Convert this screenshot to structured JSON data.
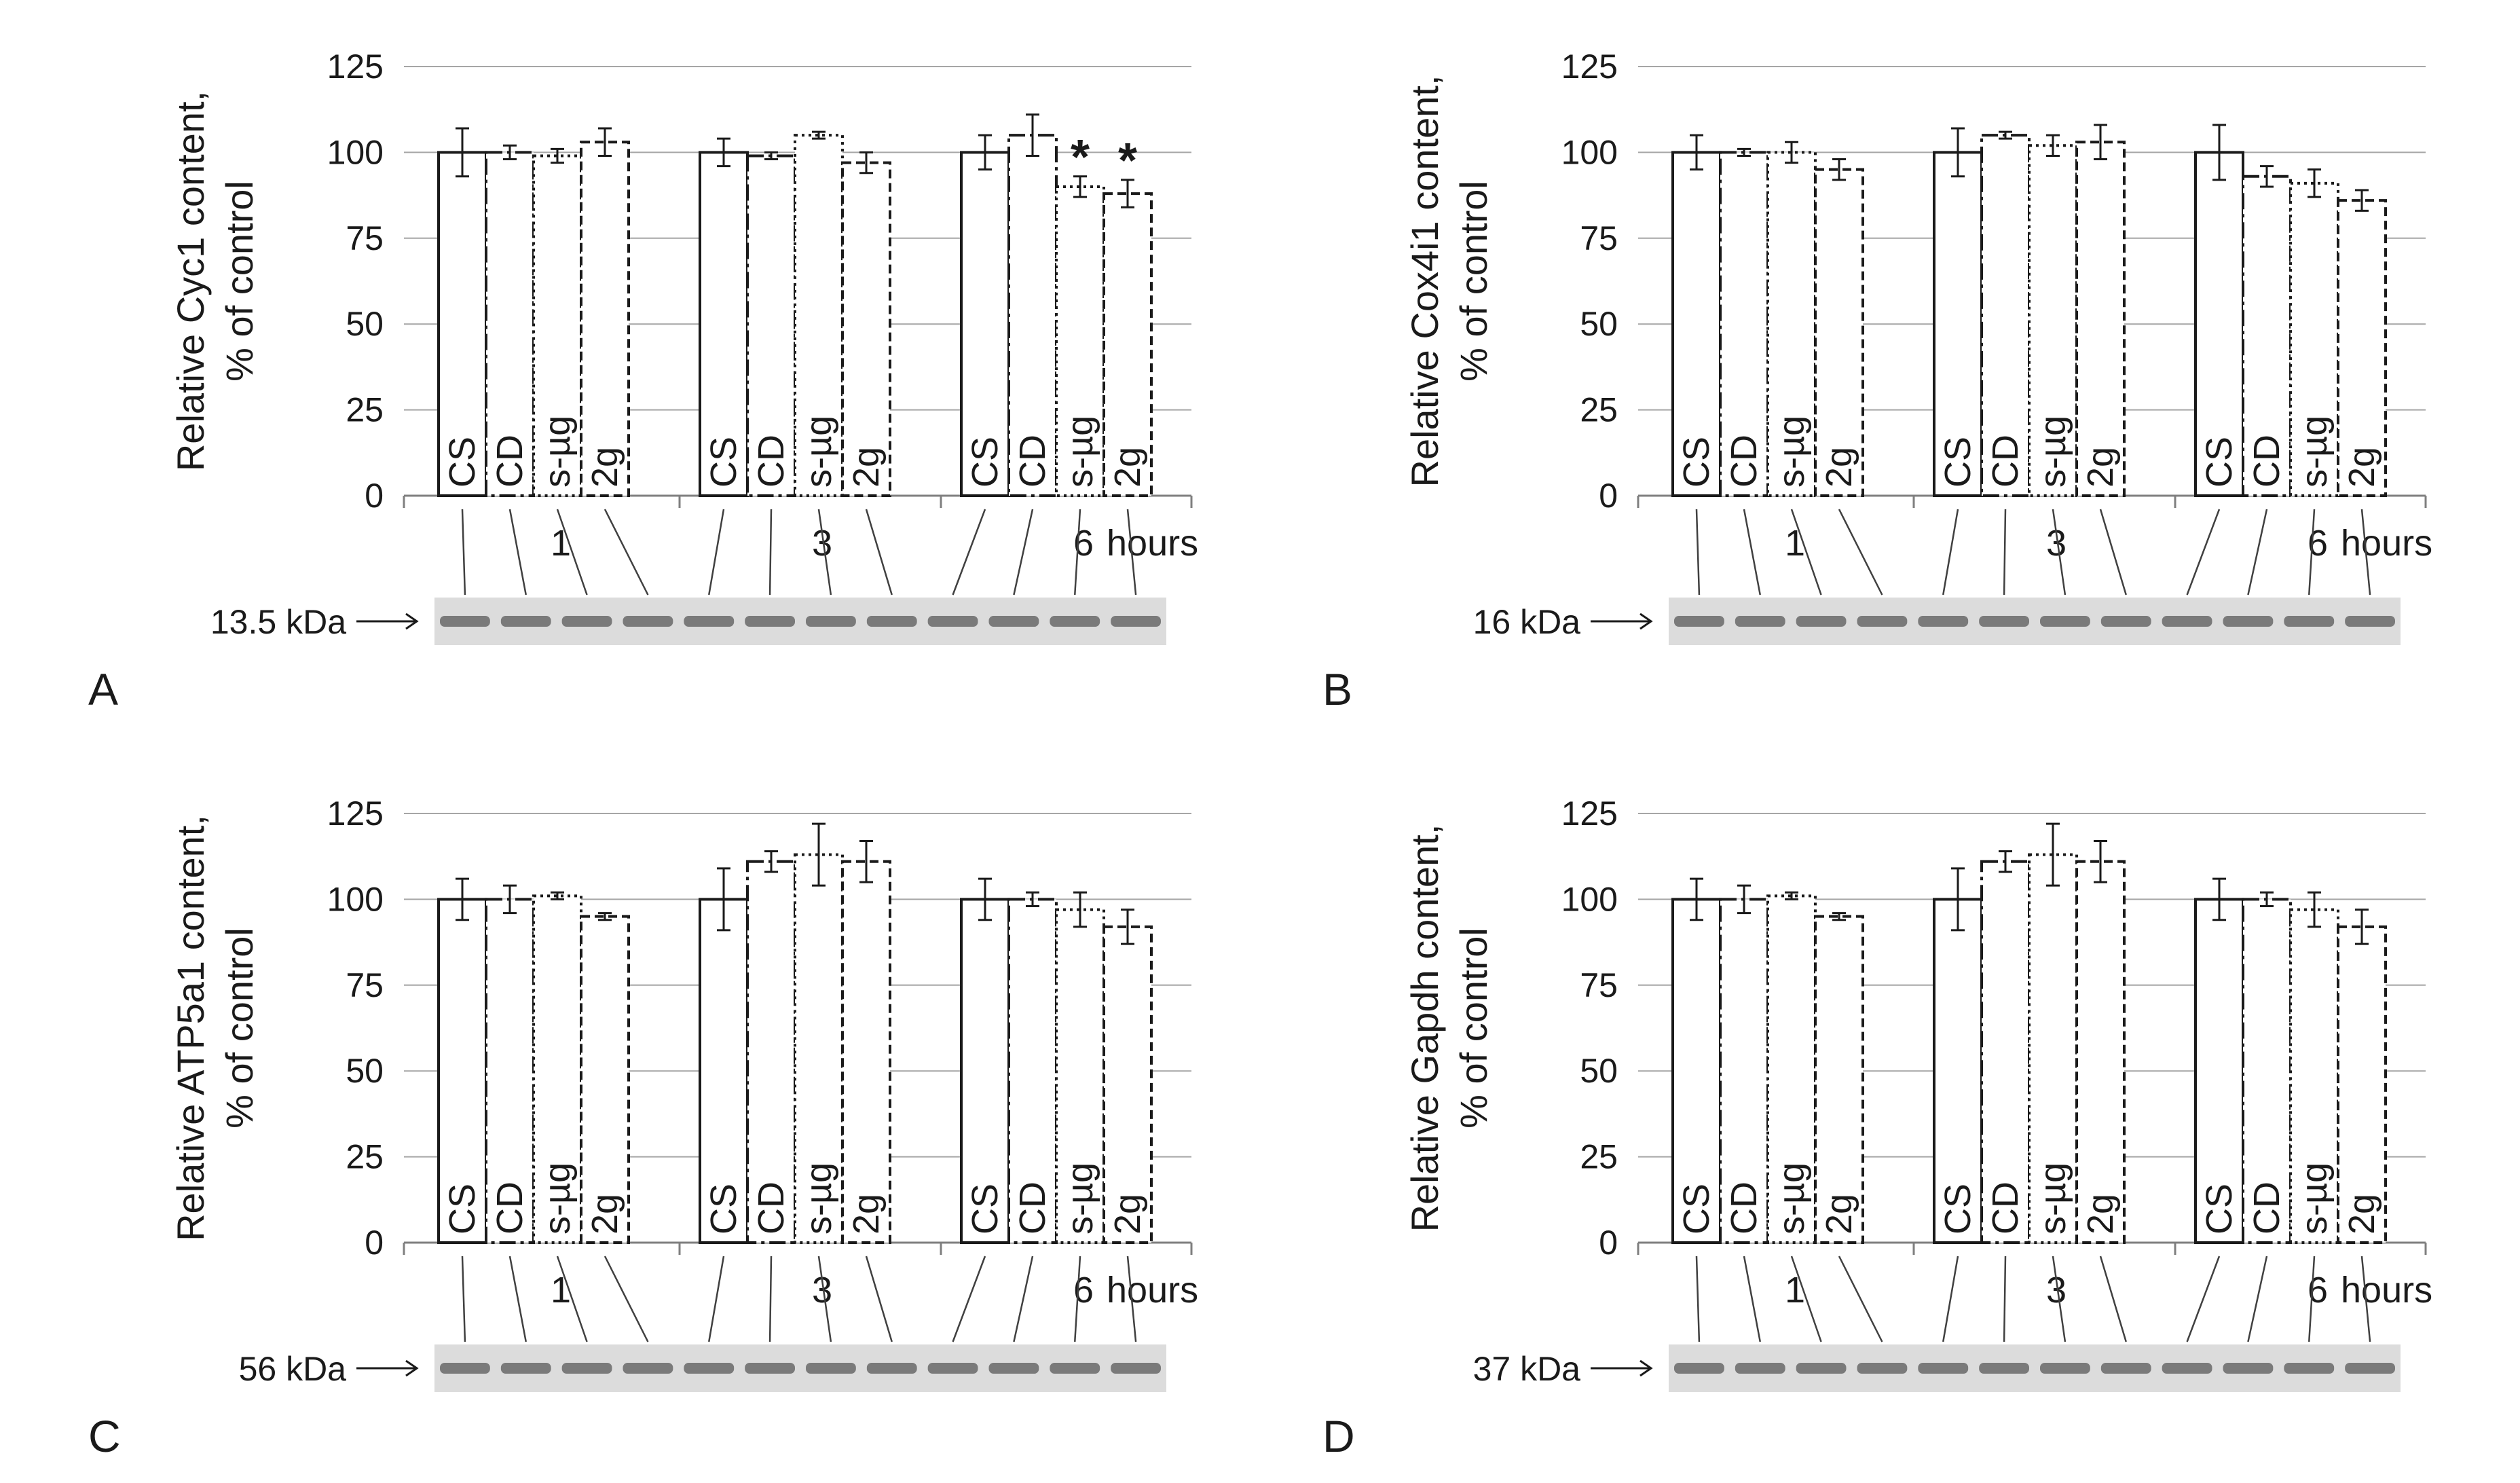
{
  "figure": {
    "y_ticks": [
      "0",
      "25",
      "50",
      "75",
      "100",
      "125"
    ],
    "time_labels": [
      "1",
      "3",
      "6"
    ],
    "hours_label": "hours",
    "colors": {
      "axis": "#7f7f7f",
      "grid": "#a6a6a6",
      "bar": "#1a1a1a",
      "blot_bg": "#dcdcdc",
      "band": "#5a5a5a"
    }
  },
  "chart_data": [
    {
      "type": "bar",
      "panel_label": "A",
      "ylabel_line1": "Relative Cyc1 content,",
      "ylabel_line2": "% of control",
      "ylim": [
        0,
        125
      ],
      "y_ticks": [
        0,
        25,
        50,
        75,
        100,
        125
      ],
      "groups": [
        "1",
        "3",
        "6"
      ],
      "xlabel": "hours",
      "series": [
        {
          "name": "CS",
          "line_style": "solid",
          "values": [
            100,
            100,
            100
          ],
          "errors": [
            7,
            4,
            5
          ]
        },
        {
          "name": "CD",
          "line_style": "dash-dot",
          "values": [
            100,
            99,
            105
          ],
          "errors": [
            2,
            1,
            6
          ]
        },
        {
          "name": "s-µg",
          "line_style": "dotted",
          "values": [
            99,
            105,
            90
          ],
          "errors": [
            2,
            1,
            3
          ]
        },
        {
          "name": "2g",
          "line_style": "dashed",
          "values": [
            103,
            97,
            88
          ],
          "errors": [
            4,
            3,
            4
          ]
        }
      ],
      "annotations": [
        {
          "text": "*",
          "group": "6",
          "series": "s-µg"
        },
        {
          "text": "*",
          "group": "6",
          "series": "2g"
        }
      ],
      "blot_label": "13.5 kDa"
    },
    {
      "type": "bar",
      "panel_label": "B",
      "ylabel_line1": "Relative Cox4i1 content,",
      "ylabel_line2": "% of control",
      "ylim": [
        0,
        125
      ],
      "y_ticks": [
        0,
        25,
        50,
        75,
        100,
        125
      ],
      "groups": [
        "1",
        "3",
        "6"
      ],
      "xlabel": "hours",
      "series": [
        {
          "name": "CS",
          "line_style": "solid",
          "values": [
            100,
            100,
            100
          ],
          "errors": [
            5,
            7,
            8
          ]
        },
        {
          "name": "CD",
          "line_style": "dash-dot",
          "values": [
            100,
            105,
            93
          ],
          "errors": [
            1,
            1,
            3
          ]
        },
        {
          "name": "s-µg",
          "line_style": "dotted",
          "values": [
            100,
            102,
            91
          ],
          "errors": [
            3,
            3,
            4
          ]
        },
        {
          "name": "2g",
          "line_style": "dashed",
          "values": [
            95,
            103,
            86
          ],
          "errors": [
            3,
            5,
            3
          ]
        }
      ],
      "annotations": [],
      "blot_label": "16 kDa"
    },
    {
      "type": "bar",
      "panel_label": "C",
      "ylabel_line1": "Relative ATP5a1 content,",
      "ylabel_line2": "% of control",
      "ylim": [
        0,
        125
      ],
      "y_ticks": [
        0,
        25,
        50,
        75,
        100,
        125
      ],
      "groups": [
        "1",
        "3",
        "6"
      ],
      "xlabel": "hours",
      "series": [
        {
          "name": "CS",
          "line_style": "solid",
          "values": [
            100,
            100,
            100
          ],
          "errors": [
            6,
            9,
            6
          ]
        },
        {
          "name": "CD",
          "line_style": "dash-dot",
          "values": [
            100,
            111,
            100
          ],
          "errors": [
            4,
            3,
            2
          ]
        },
        {
          "name": "s-µg",
          "line_style": "dotted",
          "values": [
            101,
            113,
            97
          ],
          "errors": [
            1,
            9,
            5
          ]
        },
        {
          "name": "2g",
          "line_style": "dashed",
          "values": [
            95,
            111,
            92
          ],
          "errors": [
            1,
            6,
            5
          ]
        }
      ],
      "annotations": [],
      "blot_label": "56 kDa"
    },
    {
      "type": "bar",
      "panel_label": "D",
      "ylabel_line1": "Relative Gapdh content,",
      "ylabel_line2": "% of control",
      "ylim": [
        0,
        125
      ],
      "y_ticks": [
        0,
        25,
        50,
        75,
        100,
        125
      ],
      "groups": [
        "1",
        "3",
        "6"
      ],
      "xlabel": "hours",
      "series": [
        {
          "name": "CS",
          "line_style": "solid",
          "values": [
            100,
            100,
            100
          ],
          "errors": [
            6,
            9,
            6
          ]
        },
        {
          "name": "CD",
          "line_style": "dash-dot",
          "values": [
            100,
            111,
            100
          ],
          "errors": [
            4,
            3,
            2
          ]
        },
        {
          "name": "s-µg",
          "line_style": "dotted",
          "values": [
            101,
            113,
            97
          ],
          "errors": [
            1,
            9,
            5
          ]
        },
        {
          "name": "2g",
          "line_style": "dashed",
          "values": [
            95,
            111,
            92
          ],
          "errors": [
            1,
            6,
            5
          ]
        }
      ],
      "annotations": [],
      "blot_label": "37 kDa"
    }
  ]
}
